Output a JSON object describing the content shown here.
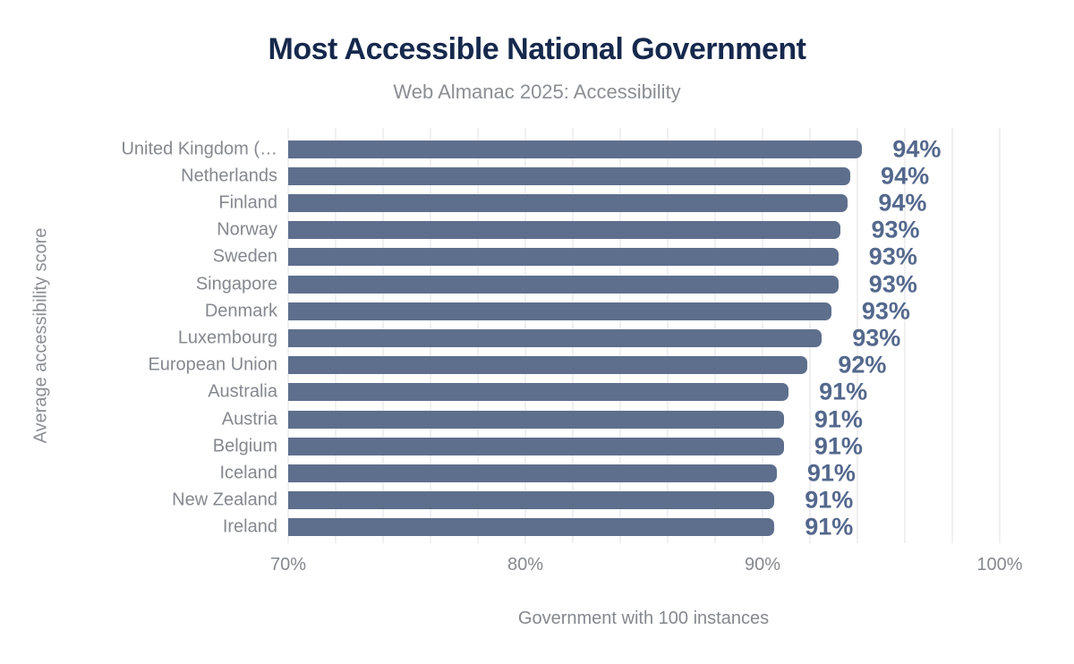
{
  "header": {
    "title": "Most Accessible National Government",
    "subtitle": "Web Almanac 2025: Accessibility"
  },
  "chart_data": {
    "type": "bar",
    "orientation": "horizontal",
    "title": "Most Accessible National Government",
    "subtitle": "Web Almanac 2025: Accessibility",
    "xlabel": "Government with 100 instances",
    "ylabel": "Average accessibility score",
    "categories": [
      "United Kingdom (…",
      "Netherlands",
      "Finland",
      "Norway",
      "Sweden",
      "Singapore",
      "Denmark",
      "Luxembourg",
      "European Union",
      "Australia",
      "Austria",
      "Belgium",
      "Iceland",
      "New Zealand",
      "Ireland"
    ],
    "values": [
      94.2,
      93.7,
      93.6,
      93.3,
      93.2,
      93.2,
      92.9,
      92.5,
      91.9,
      91.1,
      90.9,
      90.9,
      90.6,
      90.5,
      90.5
    ],
    "value_labels": [
      "94%",
      "94%",
      "94%",
      "93%",
      "93%",
      "93%",
      "93%",
      "93%",
      "92%",
      "91%",
      "91%",
      "91%",
      "91%",
      "91%",
      "91%"
    ],
    "xlim": [
      70,
      100
    ],
    "x_tick_values": [
      70,
      80,
      90,
      100
    ],
    "x_tick_labels": [
      "70%",
      "80%",
      "90%",
      "100%"
    ],
    "grid": "vertical minor gridlines every 2%, no axis lines",
    "legend": "none",
    "colors": {
      "bar": "#5e6f8d",
      "value_label": "#54688d",
      "title": "#16294d",
      "subtitle": "#8b8e93",
      "axis_text": "#85888e",
      "gridline": "#f0f0f2",
      "background": "#ffffff"
    }
  }
}
